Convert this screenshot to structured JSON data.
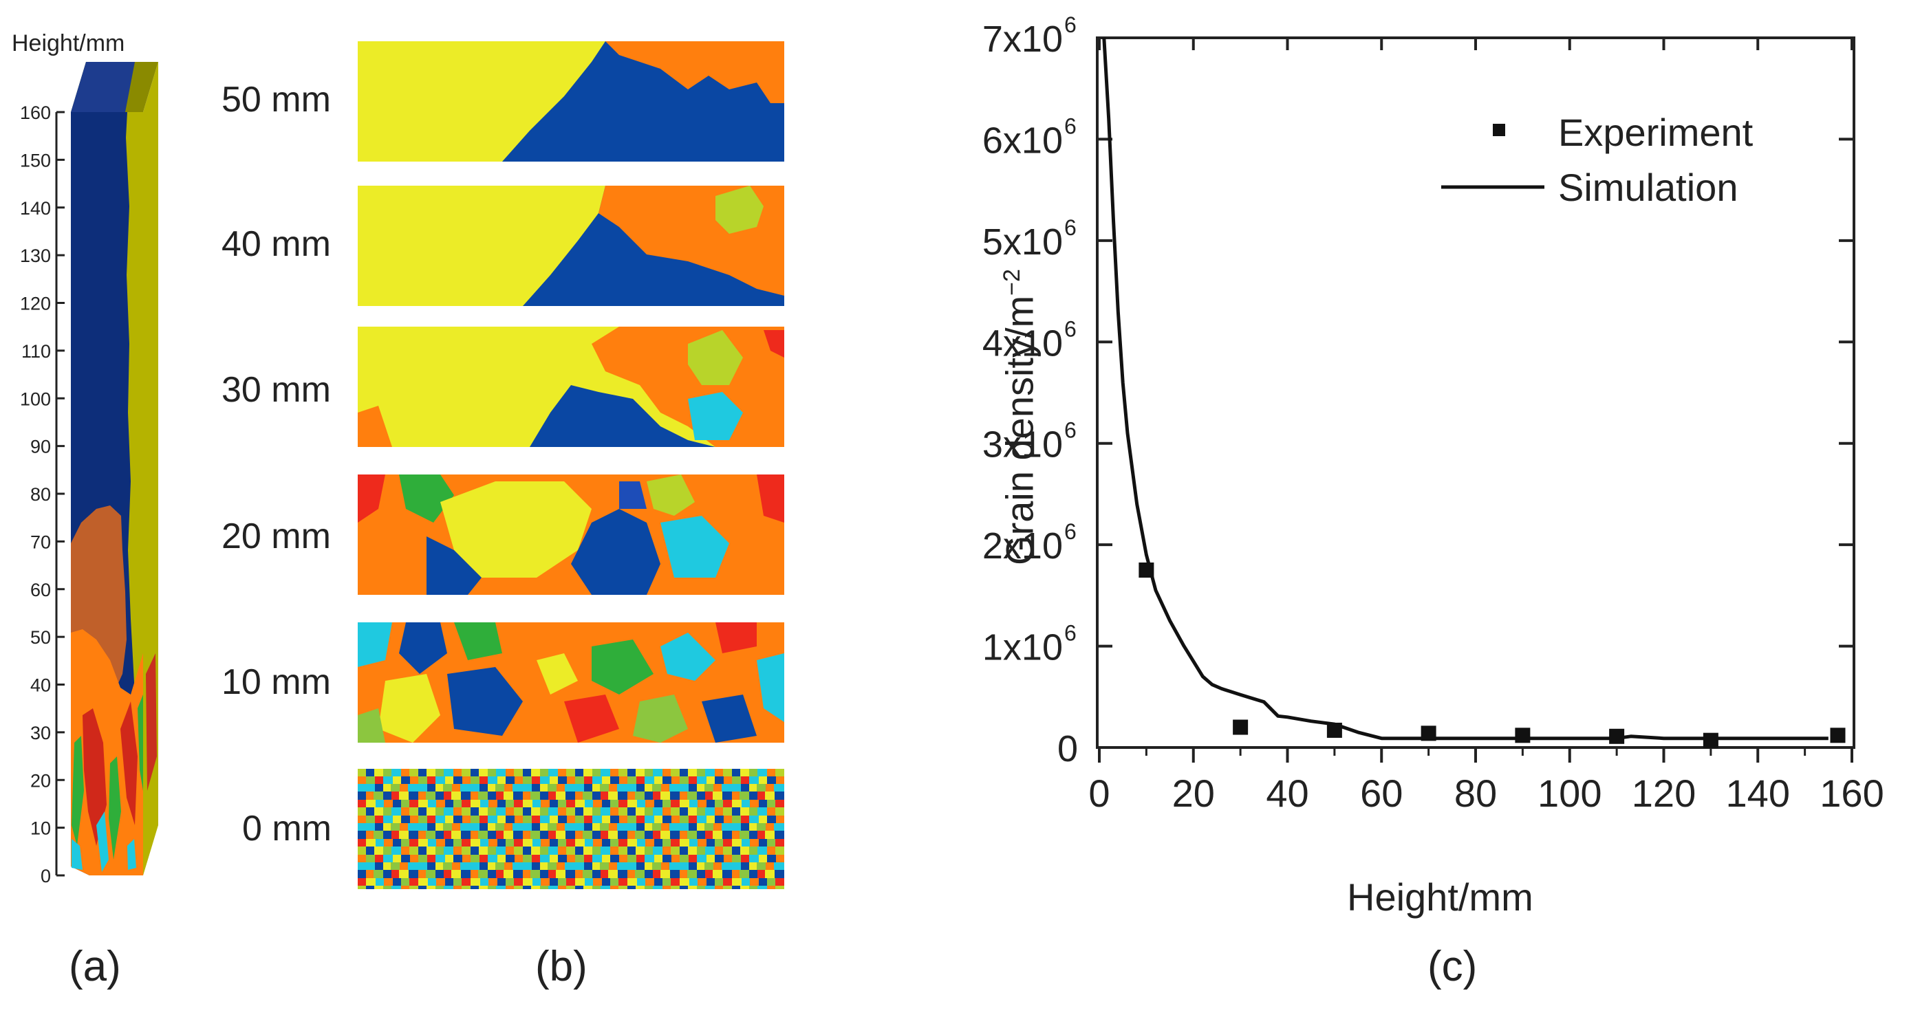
{
  "panel_a": {
    "axis_title": "Height/mm",
    "ticks": [
      0,
      10,
      20,
      30,
      40,
      50,
      60,
      70,
      80,
      90,
      100,
      110,
      120,
      130,
      140,
      150,
      160
    ],
    "caption": "(a)"
  },
  "panel_b": {
    "slices": [
      "50 mm",
      "40 mm",
      "30 mm",
      "20 mm",
      "10 mm",
      "0 mm"
    ],
    "caption": "(b)"
  },
  "colors": {
    "blue": "#0a47a3",
    "yellow": "#ecec27",
    "orange": "#ff7f0e",
    "red": "#ee2a1c",
    "green": "#8cc63f",
    "cyan": "#1fc9e0",
    "lime": "#b8d42a",
    "olive": "#b5b300",
    "navy": "#0d2e7a",
    "brown": "#c0602a"
  },
  "chart_data": {
    "type": "scatter",
    "xlabel": "Height/mm",
    "ylabel": "Grain density/m",
    "ylabel_superscript": "−2",
    "xlim": [
      0,
      160
    ],
    "ylim": [
      0,
      7000000
    ],
    "x_ticks": [
      "0",
      "20",
      "40",
      "60",
      "80",
      "100",
      "120",
      "140",
      "160"
    ],
    "y_ticks": [
      {
        "value": 0,
        "label": "0"
      },
      {
        "value": 1000000,
        "label": "1x10",
        "exp": "6"
      },
      {
        "value": 2000000,
        "label": "2x10",
        "exp": "6"
      },
      {
        "value": 3000000,
        "label": "3x10",
        "exp": "6"
      },
      {
        "value": 4000000,
        "label": "4x10",
        "exp": "6"
      },
      {
        "value": 5000000,
        "label": "5x10",
        "exp": "6"
      },
      {
        "value": 6000000,
        "label": "6x10",
        "exp": "6"
      },
      {
        "value": 7000000,
        "label": "7x10",
        "exp": "6"
      }
    ],
    "legend_position": "top-right",
    "series": [
      {
        "name": "Experiment",
        "style": "square-markers",
        "x": [
          10,
          30,
          50,
          70,
          90,
          110,
          130,
          157
        ],
        "y": [
          1750000,
          200000,
          170000,
          140000,
          120000,
          110000,
          70000,
          120000
        ]
      },
      {
        "name": "Simulation",
        "style": "line",
        "x": [
          1,
          2,
          3,
          4,
          5,
          6,
          8,
          10,
          12,
          15,
          18,
          20,
          22,
          24,
          26,
          28,
          30,
          35,
          38,
          40,
          45,
          50,
          55,
          60,
          70,
          80,
          90,
          100,
          110,
          113,
          120,
          130,
          140,
          150,
          155
        ],
        "y": [
          7000000,
          6200000,
          5200000,
          4300000,
          3600000,
          3100000,
          2400000,
          1900000,
          1550000,
          1250000,
          1000000,
          850000,
          700000,
          620000,
          580000,
          550000,
          520000,
          450000,
          310000,
          300000,
          260000,
          230000,
          150000,
          90000,
          90000,
          90000,
          90000,
          90000,
          90000,
          110000,
          90000,
          90000,
          90000,
          90000,
          90000
        ]
      }
    ],
    "caption": "(c)"
  }
}
